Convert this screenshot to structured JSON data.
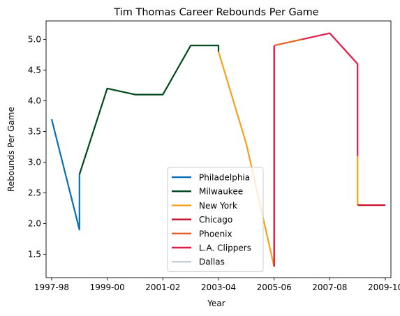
{
  "chart_data": {
    "type": "line",
    "title": "Tim Thomas  Career Rebounds Per Game",
    "xlabel": "Year",
    "ylabel": "Rebounds Per Game",
    "grid": false,
    "legend_position": "lower-center",
    "x_ticks": [
      "1997-98",
      "1999-00",
      "2001-02",
      "2003-04",
      "2005-06",
      "2007-08",
      "2009-10"
    ],
    "x_tick_indices": [
      0,
      2,
      4,
      6,
      8,
      10,
      12
    ],
    "xlim": [
      -0.2,
      12.2
    ],
    "y_ticks": [
      "1.5",
      "2.0",
      "2.5",
      "3.0",
      "3.5",
      "4.0",
      "4.5",
      "5.0"
    ],
    "y_tick_values": [
      1.5,
      2.0,
      2.5,
      3.0,
      3.5,
      4.0,
      4.5,
      5.0
    ],
    "ylim": [
      1.12,
      5.3
    ],
    "series": [
      {
        "name": "Philadelphia",
        "color": "#0a6eb4",
        "x": [
          0,
          1,
          1
        ],
        "y": [
          3.7,
          1.9,
          2.8
        ]
      },
      {
        "name": "Milwaukee",
        "color": "#00471b",
        "x": [
          1,
          2,
          3,
          4,
          5,
          6,
          6
        ],
        "y": [
          2.8,
          4.2,
          4.1,
          4.1,
          4.9,
          4.9,
          4.8
        ]
      },
      {
        "name": "New York",
        "color": "#f5a01e",
        "x": [
          6,
          7,
          8,
          8
        ],
        "y": [
          4.8,
          3.3,
          1.3,
          1.3
        ]
      },
      {
        "name": "Chicago",
        "color": "#c8102e",
        "x": [
          8,
          8
        ],
        "y": [
          1.3,
          4.9
        ]
      },
      {
        "name": "Phoenix",
        "color": "#e56020",
        "x": [
          8,
          9
        ],
        "y": [
          4.9,
          5.0
        ]
      },
      {
        "name": "L.A. Clippers",
        "color": "#e31b4a",
        "x": [
          9,
          10,
          11,
          11
        ],
        "y": [
          5.0,
          5.1,
          4.6,
          3.1
        ]
      },
      {
        "name": "New York",
        "color": "#f5a01e",
        "x": [
          11,
          11
        ],
        "y": [
          3.1,
          2.3
        ]
      },
      {
        "name": "Chicago",
        "color": "#c8102e",
        "x": [
          11,
          12
        ],
        "y": [
          2.3,
          2.3
        ]
      },
      {
        "name": "Dallas",
        "color": "#c4ced4",
        "x": [],
        "y": []
      }
    ],
    "legend": [
      {
        "label": "Philadelphia",
        "color": "#0a6eb4"
      },
      {
        "label": "Milwaukee",
        "color": "#00471b"
      },
      {
        "label": "New York",
        "color": "#f5a01e"
      },
      {
        "label": "Chicago",
        "color": "#c8102e"
      },
      {
        "label": "Phoenix",
        "color": "#e56020"
      },
      {
        "label": "L.A. Clippers",
        "color": "#e31b4a"
      },
      {
        "label": "Dallas",
        "color": "#c4ced4"
      }
    ]
  }
}
